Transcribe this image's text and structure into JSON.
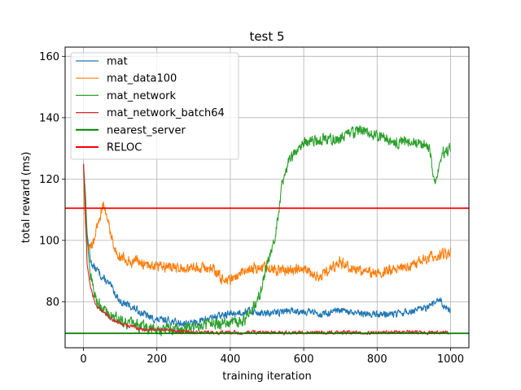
{
  "chart_data": {
    "type": "line",
    "title": "test 5",
    "xlabel": "training iteration",
    "ylabel": "total reward (ms)",
    "xlim": [
      -50,
      1050
    ],
    "ylim": [
      65,
      163
    ],
    "xticks": [
      0,
      200,
      400,
      600,
      800,
      1000
    ],
    "yticks": [
      80,
      100,
      120,
      140,
      160
    ],
    "grid": true,
    "legend_position": "upper-left",
    "series": [
      {
        "name": "mat",
        "color": "#1f77b4",
        "noise": 1.0,
        "x": [
          0,
          5,
          10,
          20,
          30,
          40,
          50,
          60,
          75,
          90,
          100,
          120,
          150,
          180,
          200,
          230,
          260,
          300,
          350,
          400,
          450,
          500,
          550,
          600,
          650,
          700,
          750,
          800,
          850,
          900,
          940,
          960,
          970,
          980,
          1000
        ],
        "y": [
          125,
          116,
          102,
          93,
          91,
          90,
          88,
          87,
          85,
          82,
          80,
          79,
          77,
          75,
          74,
          74,
          73,
          73,
          75,
          76,
          77,
          76,
          77,
          77,
          76,
          77,
          76,
          76,
          76,
          77,
          78,
          80,
          81,
          79,
          77
        ]
      },
      {
        "name": "mat_data100",
        "color": "#ff7f0e",
        "noise": 1.5,
        "x": [
          0,
          3,
          8,
          15,
          25,
          35,
          45,
          55,
          65,
          75,
          85,
          100,
          115,
          130,
          150,
          170,
          200,
          250,
          300,
          350,
          380,
          400,
          450,
          500,
          550,
          600,
          640,
          700,
          750,
          800,
          850,
          900,
          950,
          1000
        ],
        "y": [
          125,
          110,
          100,
          97,
          99,
          103,
          108,
          112,
          107,
          102,
          97,
          95,
          94,
          93,
          93,
          92,
          92,
          91,
          91,
          91,
          87,
          87,
          91,
          91,
          90,
          91,
          88,
          93,
          90,
          89,
          91,
          92,
          95,
          96
        ]
      },
      {
        "name": "mat_network",
        "color": "#2ca02c",
        "noise": 1.6,
        "x": [
          0,
          5,
          10,
          20,
          30,
          50,
          70,
          100,
          150,
          200,
          250,
          300,
          350,
          400,
          440,
          480,
          500,
          520,
          530,
          540,
          560,
          580,
          600,
          650,
          700,
          750,
          800,
          850,
          900,
          940,
          950,
          960,
          970,
          980,
          1000
        ],
        "y": [
          125,
          115,
          100,
          88,
          82,
          78,
          76,
          74,
          72,
          71,
          71,
          72,
          73,
          73,
          74,
          82,
          92,
          100,
          108,
          118,
          126,
          130,
          132,
          133,
          133,
          136,
          134,
          132,
          132,
          131,
          124,
          118,
          124,
          129,
          130
        ]
      },
      {
        "name": "mat_network_batch64",
        "color": "#d62728",
        "noise": 0.5,
        "x": [
          0,
          5,
          10,
          20,
          30,
          40,
          60,
          80,
          100,
          130,
          160,
          200,
          250,
          300,
          400,
          500,
          600,
          700,
          800,
          900,
          1000
        ],
        "y": [
          125,
          110,
          92,
          84,
          80,
          78,
          76,
          74,
          73,
          72,
          71,
          71,
          70.5,
          70,
          70,
          70,
          70,
          70,
          70,
          70,
          70
        ]
      },
      {
        "name": "nearest_server",
        "color": "#008000",
        "constant": 69.7
      },
      {
        "name": "RELOC",
        "color": "#ff0000",
        "constant": 110.5
      }
    ]
  }
}
